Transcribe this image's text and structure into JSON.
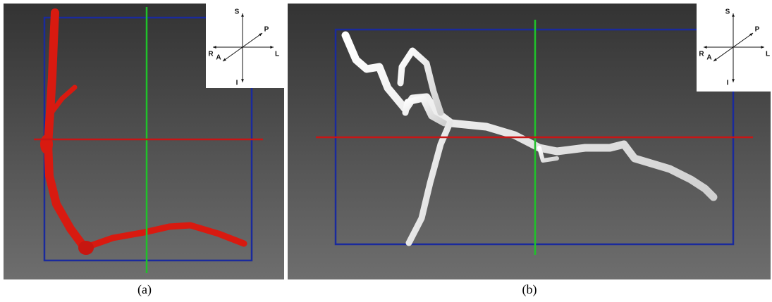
{
  "panels": [
    {
      "caption": "(a)",
      "orientation": {
        "superior": "S",
        "posterior": "P",
        "right": "R",
        "left": "L",
        "anterior": "A",
        "inferior": "I"
      }
    },
    {
      "caption": "(b)",
      "orientation": {
        "superior": "S",
        "posterior": "P",
        "right": "R",
        "left": "L",
        "anterior": "A",
        "inferior": "I"
      }
    }
  ]
}
